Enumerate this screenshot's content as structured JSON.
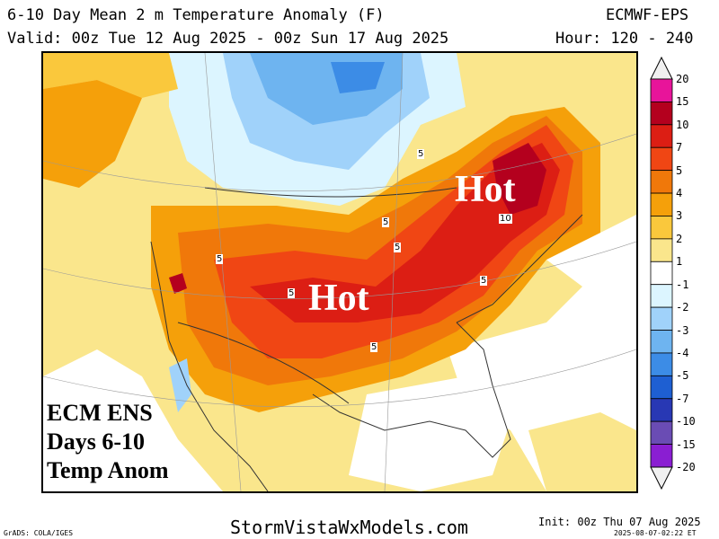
{
  "header": {
    "title": "6-10 Day Mean 2 m Temperature Anomaly (F)",
    "model": "ECMWF-EPS",
    "valid": "Valid: 00z Tue 12 Aug 2025 - 00z Sun 17 Aug 2025",
    "hour": "Hour: 120 - 240"
  },
  "map": {
    "hot_label_east": "Hot",
    "hot_label_central": "Hot",
    "overlay_line1": "ECM ENS",
    "overlay_line2": "Days 6-10",
    "overlay_line3": "Temp Anom",
    "contour_labels": [
      "5",
      "5",
      "5",
      "5",
      "5",
      "5",
      "5",
      "10"
    ]
  },
  "legend": {
    "ticks": [
      "20",
      "15",
      "10",
      "7",
      "5",
      "4",
      "3",
      "2",
      "1",
      "-1",
      "-2",
      "-3",
      "-4",
      "-5",
      "-7",
      "-10",
      "-15",
      "-20"
    ],
    "colors": [
      "#f0f0f0",
      "#e8149a",
      "#b4001e",
      "#dc1e14",
      "#f04614",
      "#f0780a",
      "#f5a00a",
      "#fac83c",
      "#fae68c",
      "#ffffff",
      "#dcf5ff",
      "#a0d2fa",
      "#6eb4f0",
      "#3c8ce6",
      "#1e5fd2",
      "#2838b4",
      "#6a4cb4",
      "#8a1ed2",
      "#f0f0f0"
    ]
  },
  "footer": {
    "grads": "GrADS: COLA/IGES",
    "site": "StormVistaWxModels.com",
    "init": "Init: 00z Thu 07 Aug 2025",
    "made": "2025-08-07-02:22 ET"
  }
}
